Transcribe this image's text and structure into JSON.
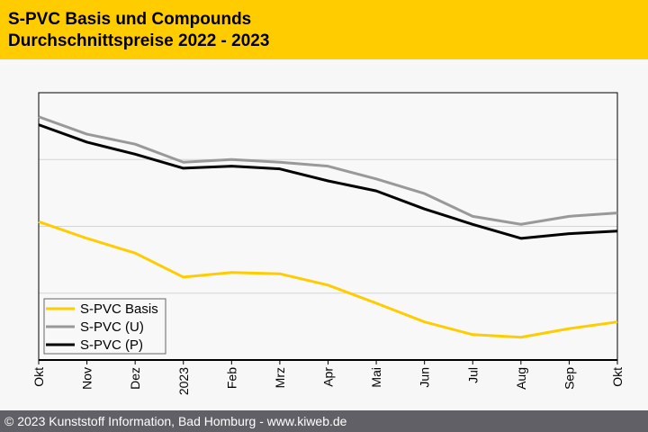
{
  "header": {
    "title": "S-PVC Basis und Compounds",
    "subtitle": "Durchschnittspreise 2022 - 2023"
  },
  "footer": {
    "text": "© 2023 Kunststoff Information, Bad Homburg - www.kiweb.de"
  },
  "chart_data": {
    "type": "line",
    "title": "S-PVC Basis und Compounds – Durchschnittspreise 2022 - 2023",
    "xlabel": "",
    "ylabel": "",
    "categories": [
      "Okt",
      "Nov",
      "Dez",
      "2023",
      "Feb",
      "Mrz",
      "Apr",
      "Mai",
      "Jun",
      "Jul",
      "Aug",
      "Sep",
      "Okt"
    ],
    "ylim": [
      0,
      4
    ],
    "y_gridlines": [
      1,
      2,
      3
    ],
    "y_tick_labels_shown": false,
    "legend_position": "bottom-left",
    "series": [
      {
        "name": "S-PVC Basis",
        "color": "#ffcc00",
        "values": [
          2.07,
          1.82,
          1.6,
          1.24,
          1.31,
          1.29,
          1.12,
          0.85,
          0.57,
          0.38,
          0.34,
          0.47,
          0.57
        ]
      },
      {
        "name": "S-PVC (U)",
        "color": "#999999",
        "values": [
          3.64,
          3.38,
          3.23,
          2.96,
          3.0,
          2.96,
          2.9,
          2.71,
          2.49,
          2.15,
          2.03,
          2.15,
          2.2
        ]
      },
      {
        "name": "S-PVC (P)",
        "color": "#000000",
        "values": [
          3.52,
          3.26,
          3.08,
          2.87,
          2.9,
          2.86,
          2.68,
          2.53,
          2.26,
          2.03,
          1.82,
          1.89,
          1.93
        ]
      }
    ]
  }
}
